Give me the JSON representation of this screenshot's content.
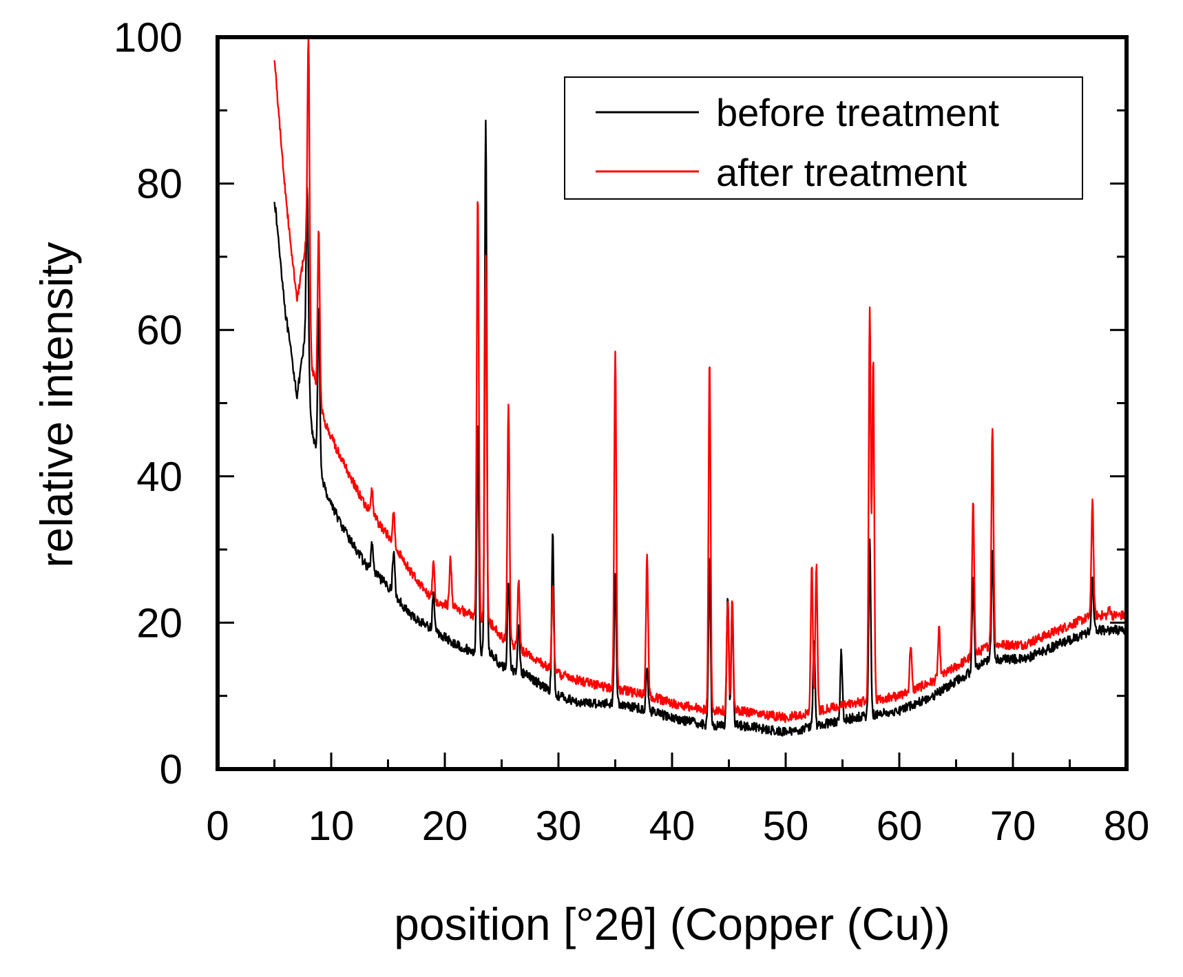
{
  "chart_data": {
    "type": "line",
    "xlabel": "position [°2θ] (Copper (Cu))",
    "ylabel": "relative intensity",
    "xlim": [
      0,
      80
    ],
    "ylim": [
      0,
      100
    ],
    "x_ticks": [
      0,
      10,
      20,
      30,
      40,
      50,
      60,
      70,
      80
    ],
    "x_tick_labels": [
      "0",
      "10",
      "20",
      "30",
      "40",
      "50",
      "60",
      "70",
      "80"
    ],
    "y_ticks": [
      0,
      20,
      40,
      60,
      80,
      100
    ],
    "y_tick_labels": [
      "0",
      "20",
      "40",
      "60",
      "80",
      "100"
    ],
    "grid": false,
    "legend_position": "top-right",
    "series": [
      {
        "name": "before treatment",
        "color": "#000000",
        "baseline": [
          [
            5,
            78
          ],
          [
            6,
            62
          ],
          [
            7,
            51
          ],
          [
            7.8,
            60
          ],
          [
            8.3,
            46
          ],
          [
            9.5,
            38
          ],
          [
            11,
            33
          ],
          [
            13,
            28
          ],
          [
            15,
            25
          ],
          [
            17,
            21
          ],
          [
            19,
            19
          ],
          [
            21,
            17
          ],
          [
            22.5,
            16
          ],
          [
            24,
            16
          ],
          [
            25,
            14
          ],
          [
            27,
            13
          ],
          [
            29,
            11
          ],
          [
            30,
            10
          ],
          [
            32,
            9
          ],
          [
            35,
            9
          ],
          [
            38,
            8
          ],
          [
            40,
            7
          ],
          [
            43,
            6
          ],
          [
            46,
            6
          ],
          [
            50,
            5
          ],
          [
            53,
            6
          ],
          [
            56,
            7
          ],
          [
            60,
            8
          ],
          [
            63,
            10
          ],
          [
            66,
            13
          ],
          [
            68,
            15
          ],
          [
            71,
            15
          ],
          [
            74,
            17
          ],
          [
            77,
            19
          ],
          [
            80,
            19
          ]
        ],
        "peaks": [
          [
            7.9,
            79
          ],
          [
            8.9,
            63
          ],
          [
            13.6,
            31
          ],
          [
            15.5,
            30
          ],
          [
            19,
            24
          ],
          [
            22.9,
            48
          ],
          [
            23.6,
            89
          ],
          [
            25.6,
            26
          ],
          [
            26.5,
            20
          ],
          [
            29.5,
            32
          ],
          [
            35,
            27
          ],
          [
            37.8,
            14
          ],
          [
            43.3,
            29
          ],
          [
            44.9,
            24
          ],
          [
            45.3,
            23
          ],
          [
            52.5,
            18
          ],
          [
            54.9,
            16
          ],
          [
            57.4,
            31
          ],
          [
            66.5,
            26
          ],
          [
            68.2,
            30
          ],
          [
            77,
            26
          ]
        ]
      },
      {
        "name": "after treatment",
        "color": "#ff0000",
        "baseline": [
          [
            5,
            97
          ],
          [
            6,
            78
          ],
          [
            7,
            64
          ],
          [
            7.8,
            72
          ],
          [
            8.3,
            55
          ],
          [
            9.5,
            47
          ],
          [
            11,
            42
          ],
          [
            13,
            36
          ],
          [
            15,
            32
          ],
          [
            17,
            27
          ],
          [
            19,
            23
          ],
          [
            21,
            22
          ],
          [
            22.5,
            21
          ],
          [
            24,
            20
          ],
          [
            25,
            18
          ],
          [
            27,
            16
          ],
          [
            29,
            14
          ],
          [
            30,
            13
          ],
          [
            32,
            12
          ],
          [
            35,
            11
          ],
          [
            38,
            10
          ],
          [
            40,
            9
          ],
          [
            43,
            8
          ],
          [
            46,
            8
          ],
          [
            50,
            7
          ],
          [
            53,
            8
          ],
          [
            56,
            9
          ],
          [
            60,
            10
          ],
          [
            63,
            12
          ],
          [
            66,
            15
          ],
          [
            68,
            17
          ],
          [
            71,
            17
          ],
          [
            74,
            19
          ],
          [
            77,
            21
          ],
          [
            80,
            21
          ]
        ],
        "peaks": [
          [
            8,
            100
          ],
          [
            8.9,
            74
          ],
          [
            13.6,
            38
          ],
          [
            15.5,
            35
          ],
          [
            19,
            28
          ],
          [
            20.5,
            29
          ],
          [
            22.9,
            79
          ],
          [
            23.6,
            70
          ],
          [
            25.6,
            50
          ],
          [
            26.5,
            26
          ],
          [
            29.5,
            25
          ],
          [
            35,
            57
          ],
          [
            37.8,
            29
          ],
          [
            43.3,
            56
          ],
          [
            44.9,
            23
          ],
          [
            45.3,
            23
          ],
          [
            52.3,
            28
          ],
          [
            52.7,
            28
          ],
          [
            57.4,
            63
          ],
          [
            57.7,
            56
          ],
          [
            61,
            17
          ],
          [
            63.5,
            19
          ],
          [
            66.5,
            37
          ],
          [
            68.2,
            47
          ],
          [
            77,
            37
          ],
          [
            78.5,
            22
          ]
        ]
      }
    ]
  }
}
